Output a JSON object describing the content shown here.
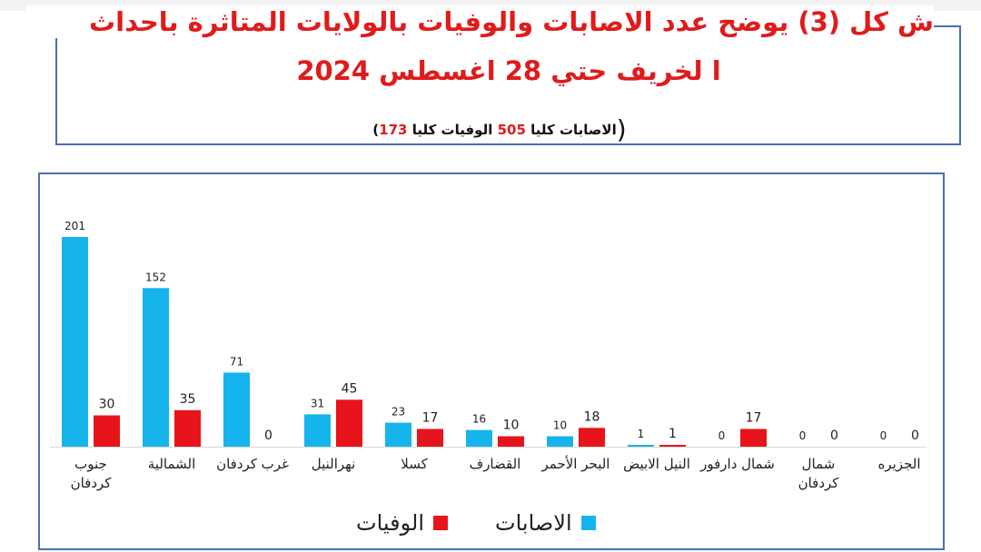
{
  "title": {
    "line1": "ش كل (3) يوضح عدد  الاصابات والوفيات بالولايات المتاثرة باحداث",
    "line2": "ا لخريف حتي 28 اغسطس 2024"
  },
  "summary": {
    "open_paren": "(",
    "injuries_label": "الاصابات كليا",
    "injuries_total": "505",
    "deaths_label": "الوفيات كليا",
    "deaths_total": "173",
    "close_paren": ")"
  },
  "colors": {
    "injuries": "#16b4ec",
    "deaths": "#e8141b",
    "title": "#e01b1b",
    "border": "#4a6fb0"
  },
  "chart_data": {
    "type": "bar",
    "categories": [
      "جنوب كردفان",
      "الشمالية",
      "غرب كردفان",
      "نهرالنيل",
      "كسلا",
      "القضارف",
      "البحر الأحمر",
      "النيل الابيض",
      "شمال دارفور",
      "شمال كردفان",
      "الجزيره"
    ],
    "category_lines": [
      [
        "جنوب",
        "كردفان"
      ],
      [
        "الشمالية"
      ],
      [
        "غرب كردفان"
      ],
      [
        "نهرالنيل"
      ],
      [
        "كسلا"
      ],
      [
        "القضارف"
      ],
      [
        "البحر الأحمر"
      ],
      [
        "النيل الابيض"
      ],
      [
        "شمال دارفور"
      ],
      [
        "شمال",
        "كردفان"
      ],
      [
        "الجزيره"
      ]
    ],
    "series": [
      {
        "name": "الاصابات",
        "values": [
          201,
          152,
          71,
          31,
          23,
          16,
          10,
          1,
          0,
          0,
          0
        ]
      },
      {
        "name": "الوفيات",
        "values": [
          30,
          35,
          0,
          45,
          17,
          10,
          18,
          1,
          17,
          0,
          0
        ]
      }
    ],
    "ylim": [
      0,
      201
    ],
    "grid": false,
    "legend_position": "bottom"
  }
}
